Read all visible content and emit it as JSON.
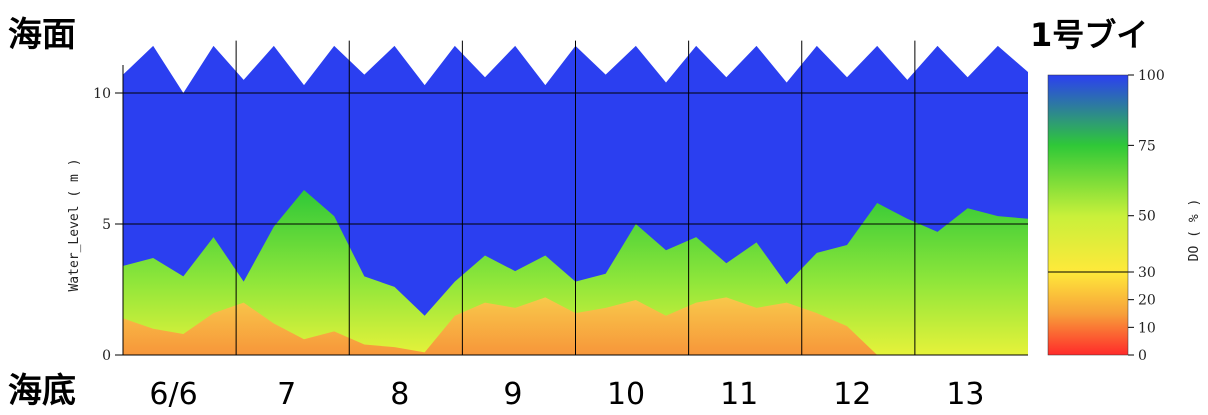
{
  "labels": {
    "surface": "海面",
    "bottom": "海底",
    "buoy": "1号ブイ"
  },
  "chart_data": {
    "type": "heatmap",
    "title": "1号ブイ",
    "xlabel": "",
    "ylabel": "Water_Level ( m )",
    "ylim": [
      0,
      12
    ],
    "yticks": [
      0,
      5,
      10
    ],
    "x_categories": [
      "6/6",
      "7",
      "8",
      "9",
      "10",
      "11",
      "12",
      "13"
    ],
    "colorbar": {
      "label": "DO ( % )",
      "ticks": [
        0,
        10,
        20,
        30,
        50,
        75,
        100
      ],
      "threshold": 30,
      "colors": [
        {
          "value": 0,
          "color": "#ff2a2a"
        },
        {
          "value": 15,
          "color": "#f7a03a"
        },
        {
          "value": 30,
          "color": "#ffe93a"
        },
        {
          "value": 50,
          "color": "#c8f03a"
        },
        {
          "value": 75,
          "color": "#2fc838"
        },
        {
          "value": 100,
          "color": "#2b3ff0"
        }
      ]
    },
    "surface_level_m": [
      10.7,
      11.8,
      10.0,
      11.8,
      10.5,
      11.8,
      10.3,
      11.8,
      10.7,
      11.8,
      10.3,
      11.8,
      10.6,
      11.8,
      10.3,
      11.8,
      10.7,
      11.8,
      10.4,
      11.8,
      10.6,
      11.8,
      10.4,
      11.8,
      10.6,
      11.8,
      10.5,
      11.8,
      10.6,
      11.8,
      10.8
    ],
    "low_do_top_m": [
      1.4,
      1.0,
      0.8,
      1.6,
      2.0,
      1.2,
      0.6,
      0.9,
      0.4,
      0.3,
      0.1,
      1.5,
      2.0,
      1.8,
      2.2,
      1.6,
      1.8,
      2.1,
      1.5,
      2.0,
      2.2,
      1.8,
      2.0,
      1.6,
      1.1,
      0.0,
      0.0,
      0.0,
      0.0,
      0.0,
      0.0
    ],
    "green_top_m": [
      3.4,
      3.7,
      3.0,
      4.5,
      2.8,
      4.9,
      6.3,
      5.3,
      3.0,
      2.6,
      1.5,
      2.8,
      3.8,
      3.2,
      3.8,
      2.8,
      3.1,
      5.0,
      4.0,
      4.5,
      3.5,
      4.3,
      2.7,
      3.9,
      4.2,
      5.8,
      5.2,
      4.7,
      5.6,
      5.3,
      5.2
    ],
    "series": [
      {
        "name": "DO",
        "values": []
      }
    ]
  }
}
